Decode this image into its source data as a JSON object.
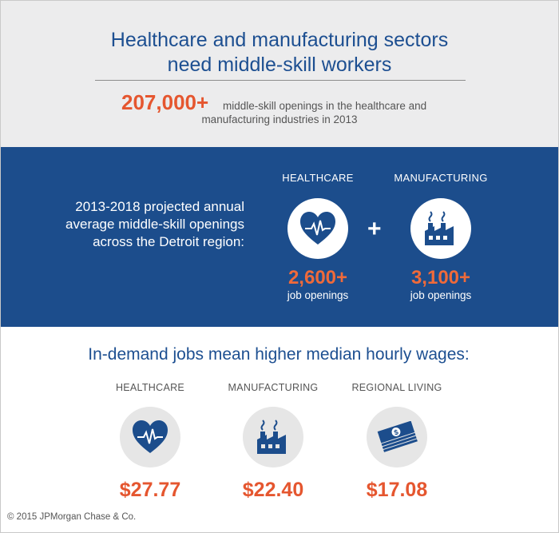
{
  "header": {
    "title_line1": "Healthcare and manufacturing sectors",
    "title_line2": "need middle-skill workers",
    "stat_value": "207,000+",
    "stat_text_line1": "middle-skill openings in the healthcare and",
    "stat_text_line2": "manufacturing industries in 2013"
  },
  "projection": {
    "text_line1": "2013-2018 projected annual",
    "text_line2": "average middle-skill openings",
    "text_line3": "across the Detroit region:",
    "plus": "+",
    "sectors": [
      {
        "label": "HEALTHCARE",
        "icon": "heart-icon",
        "value": "2,600+",
        "sub": "job openings"
      },
      {
        "label": "MANUFACTURING",
        "icon": "factory-icon",
        "value": "3,100+",
        "sub": "job openings"
      }
    ]
  },
  "wages": {
    "title": "In-demand jobs mean higher median hourly wages:",
    "items": [
      {
        "label": "HEALTHCARE",
        "icon": "heart-icon",
        "amount": "$27.77"
      },
      {
        "label": "MANUFACTURING",
        "icon": "factory-icon",
        "amount": "$22.40"
      },
      {
        "label": "REGIONAL LIVING",
        "icon": "money-stack-icon",
        "amount": "$17.08"
      }
    ]
  },
  "footer": {
    "copyright": "© 2015 JPMorgan Chase & Co."
  },
  "colors": {
    "navy": "#1c4d8c",
    "orange": "#e5562f",
    "gray_bg": "#ececed"
  }
}
